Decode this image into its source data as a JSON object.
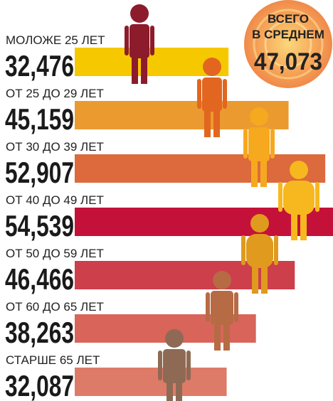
{
  "chart_data": {
    "type": "bar",
    "orientation": "horizontal",
    "categories": [
      "МОЛОЖЕ 25 ЛЕТ",
      "ОТ 25 ДО 29 ЛЕТ",
      "ОТ 30 ДО 39 ЛЕТ",
      "ОТ 40 ДО 49 ЛЕТ",
      "ОТ 50 ДО 59 ЛЕТ",
      "ОТ 60 ДО 65 ЛЕТ",
      "СТАРШЕ 65 ЛЕТ"
    ],
    "values": [
      32476,
      45159,
      52907,
      54539,
      46466,
      38263,
      32087
    ],
    "value_labels": [
      "32,476",
      "45,159",
      "52,907",
      "54,539",
      "46,466",
      "38,263",
      "32,087"
    ],
    "colors": [
      "#f6c800",
      "#eb9a30",
      "#dc6a3c",
      "#c4113a",
      "#cc3f4b",
      "#d9645a",
      "#de7b68"
    ],
    "annotation": {
      "lines": [
        "ВСЕГО",
        "В СРЕДНЕМ"
      ],
      "value": 47073,
      "value_label": "47,073"
    }
  }
}
